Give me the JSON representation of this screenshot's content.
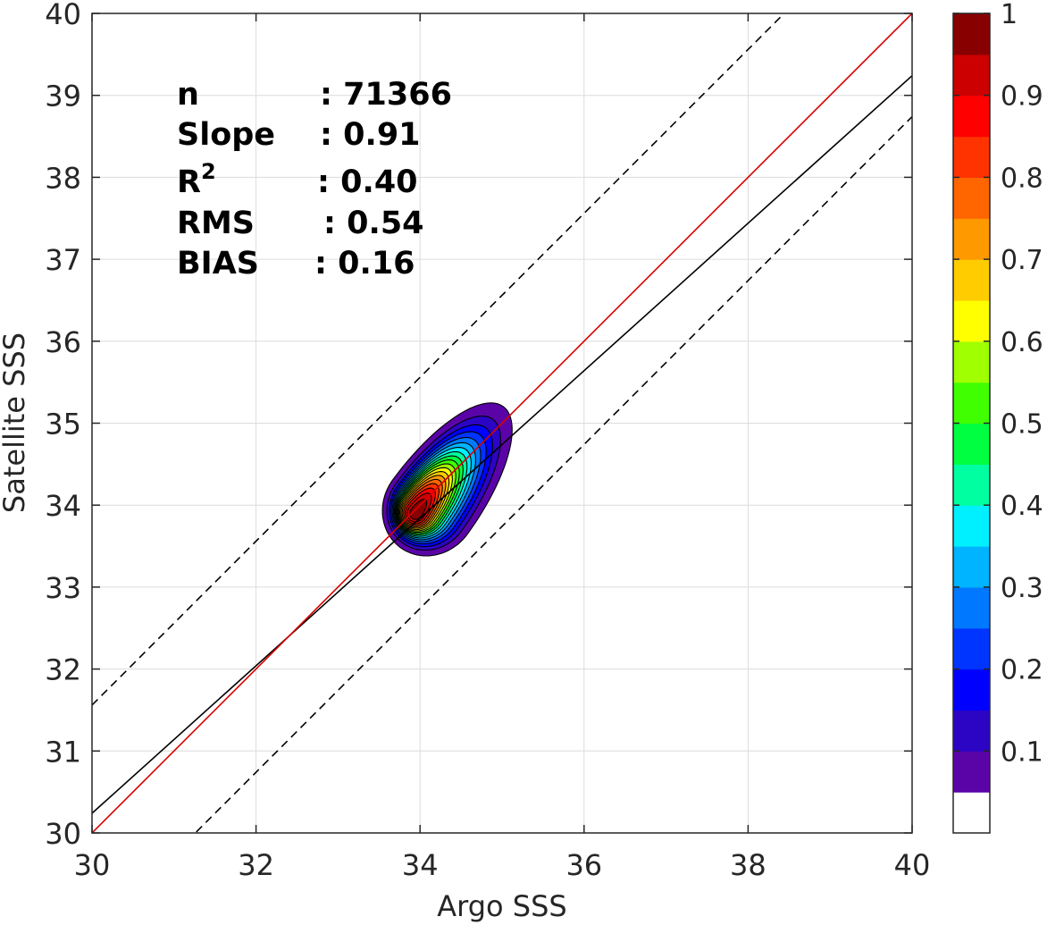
{
  "chart_data": {
    "type": "contour",
    "xlabel": "Argo SSS",
    "ylabel": "Satellite SSS",
    "xlim": [
      30,
      40
    ],
    "ylim": [
      30,
      40
    ],
    "xticks": [
      "30",
      "32",
      "34",
      "36",
      "38",
      "40"
    ],
    "yticks": [
      "30",
      "31",
      "32",
      "33",
      "34",
      "35",
      "36",
      "37",
      "38",
      "39",
      "40"
    ],
    "grid": true,
    "stats": [
      {
        "label": "n",
        "value": ": 71366"
      },
      {
        "label": "Slope",
        "value": ": 0.91"
      },
      {
        "label": "R",
        "sup": "2",
        "value": ": 0.40"
      },
      {
        "label": "RMS",
        "value": ": 0.54"
      },
      {
        "label": "BIAS",
        "value": ": 0.16"
      }
    ],
    "lines": {
      "one_to_one": {
        "slope": 1.0,
        "intercept": 0.0,
        "color": "#d90000"
      },
      "fit": {
        "slope": 0.9,
        "intercept": 3.24,
        "color": "#000000"
      },
      "upper_bound": {
        "slope": 1.0,
        "intercept": 1.56,
        "style": "dashed"
      },
      "lower_bound": {
        "slope": 1.0,
        "intercept": -1.26,
        "style": "dashed"
      }
    },
    "density_peak": {
      "x": 33.95,
      "y": 33.9
    },
    "contour_levels": [
      0.05,
      0.1,
      0.15,
      0.2,
      0.25,
      0.3,
      0.35,
      0.4,
      0.45,
      0.5,
      0.55,
      0.6,
      0.65,
      0.7,
      0.75,
      0.8,
      0.85,
      0.9,
      0.95
    ],
    "colorbar": {
      "ticks": [
        "0.1",
        "0.2",
        "0.3",
        "0.4",
        "0.5",
        "0.6",
        "0.7",
        "0.8",
        "0.9",
        "1"
      ],
      "tick_values": [
        0.1,
        0.2,
        0.3,
        0.4,
        0.5,
        0.6,
        0.7,
        0.8,
        0.9,
        1.0
      ],
      "colors": [
        "#ffffff",
        "#5a04a8",
        "#2c04c4",
        "#0000ff",
        "#0034ff",
        "#0078ff",
        "#00b4ff",
        "#00f0ff",
        "#00ffa0",
        "#00ff40",
        "#40ff00",
        "#a0ff00",
        "#ffff00",
        "#ffcc00",
        "#ff9900",
        "#ff6600",
        "#ff3300",
        "#ff0000",
        "#cc0000",
        "#880000"
      ]
    }
  }
}
